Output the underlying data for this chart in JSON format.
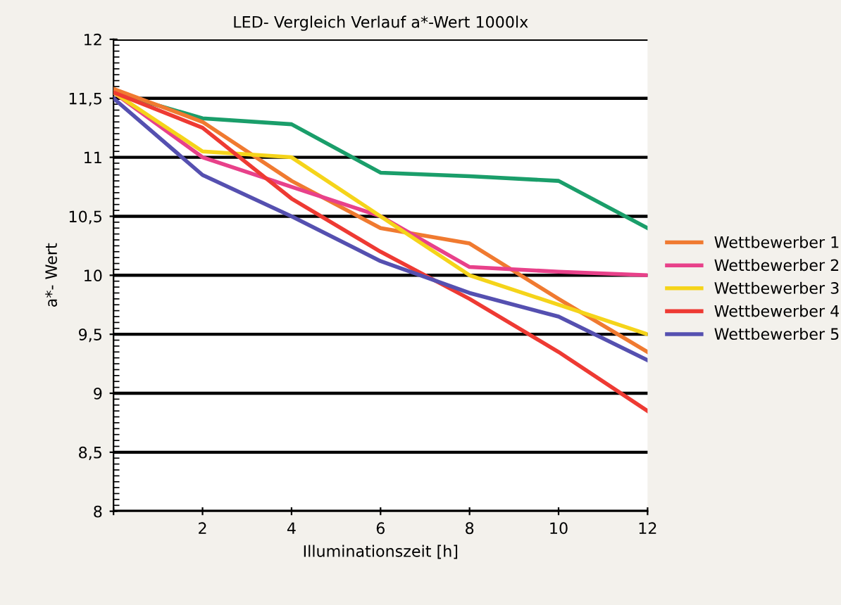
{
  "chart_data": {
    "type": "line",
    "title": "LED- Vergleich Verlauf a*-Wert 1000lx",
    "xlabel": "Illuminationszeit [h]",
    "ylabel": "a*- Wert",
    "x": [
      0,
      2,
      4,
      6,
      8,
      10,
      12
    ],
    "series": [
      {
        "color": "#1a9e6a",
        "values": [
          11.55,
          11.33,
          11.28,
          10.87,
          10.84,
          10.8,
          10.4
        ]
      },
      {
        "name": "Wettbewerber 1",
        "color": "#f07a30",
        "values": [
          11.58,
          11.3,
          10.8,
          10.4,
          10.27,
          9.8,
          9.35
        ]
      },
      {
        "name": "Wettbewerber 2",
        "color": "#e8418a",
        "values": [
          11.55,
          11.0,
          10.75,
          10.5,
          10.07,
          10.03,
          10.0
        ]
      },
      {
        "name": "Wettbewerber 3",
        "color": "#f5d41a",
        "values": [
          11.55,
          11.05,
          11.0,
          10.5,
          10.0,
          9.75,
          9.5
        ]
      },
      {
        "name": "Wettbewerber 4",
        "color": "#ee3a33",
        "values": [
          11.55,
          11.25,
          10.65,
          10.2,
          9.8,
          9.35,
          8.85
        ]
      },
      {
        "name": "Wettbewerber 5",
        "color": "#5550b0",
        "values": [
          11.5,
          10.85,
          10.5,
          10.12,
          9.85,
          9.65,
          9.28
        ]
      }
    ],
    "xlim": [
      0,
      12
    ],
    "ylim": [
      8,
      12
    ],
    "xticks": [
      {
        "value": 0,
        "label": null
      },
      2,
      4,
      6,
      8,
      10,
      12
    ],
    "yticks": [
      8,
      {
        "value": 8.5,
        "label": "8,5"
      },
      9,
      {
        "value": 9.5,
        "label": "9,5"
      },
      10,
      {
        "value": 10.5,
        "label": "10,5"
      },
      11,
      {
        "value": 11.5,
        "label": "11,5"
      },
      12
    ],
    "grid": "y",
    "legend": "right",
    "marker": "none",
    "line_style": "solid"
  }
}
